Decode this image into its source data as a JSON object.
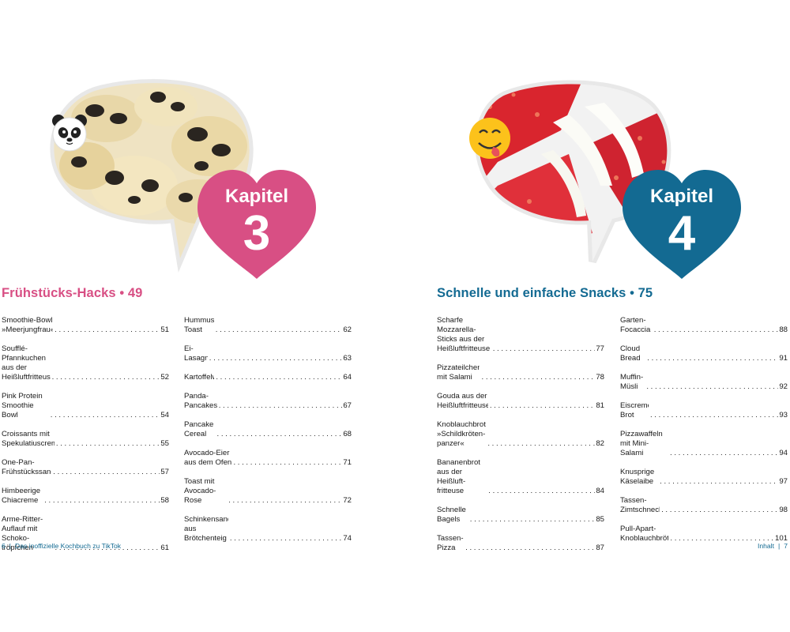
{
  "colors": {
    "pink": "#d84f84",
    "blue": "#136a92"
  },
  "left": {
    "chapter": {
      "word": "Kapitel",
      "number": "3",
      "title": "Frühstücks-Hacks  •  49"
    },
    "col1": [
      {
        "text": "Smoothie-Bowl »Meerjungfrau«",
        "page": "51"
      },
      {
        "text": "Soufflé-Pfannkuchen aus der\nHeißluftfritteuse",
        "page": "52"
      },
      {
        "text": "Pink Protein Smoothie Bowl",
        "page": "54"
      },
      {
        "text": "Croissants mit Spekulatiuscreme",
        "page": "55"
      },
      {
        "text": "One-Pan-Frühstückssandwich",
        "page": "57"
      },
      {
        "text": "Himbeerige Chiacreme",
        "page": "58"
      },
      {
        "text": "Arme-Ritter-Auflauf mit Schoko-\ntröpfchen",
        "page": "61"
      }
    ],
    "col2": [
      {
        "text": "Hummus-Toast",
        "page": "62"
      },
      {
        "text": "Ei-Lasagne",
        "page": "63"
      },
      {
        "text": "Kartoffelwaffeln",
        "page": "64"
      },
      {
        "text": "Panda-Pancakes",
        "page": "67"
      },
      {
        "text": "Pancake Cereal",
        "page": "68"
      },
      {
        "text": "Avocado-Eier aus dem Ofen",
        "page": "71"
      },
      {
        "text": "Toast mit Avocado-Rose",
        "page": "72"
      },
      {
        "text": "Schinkensandwiches aus\nBrötchenteig",
        "page": "74"
      }
    ],
    "footer": {
      "page": "6",
      "sep": "|",
      "text": "Das inoffizielle Kochbuch zu TikTok"
    }
  },
  "right": {
    "chapter": {
      "word": "Kapitel",
      "number": "4",
      "title": "Schnelle und einfache Snacks  •  75"
    },
    "col1": [
      {
        "text": "Scharfe Mozzarella-Sticks aus der\nHeißluftfritteuse",
        "page": "77"
      },
      {
        "text": "Pizzateilchen mit Salami",
        "page": "78"
      },
      {
        "text": "Gouda aus der Heißluftfritteuse",
        "page": "81"
      },
      {
        "text": "Knoblauchbrot »Schildkröten-\npanzer«",
        "page": "82"
      },
      {
        "text": "Bananenbrot aus der Heißluft-\nfritteuse",
        "page": "84"
      },
      {
        "text": "Schnelle Bagels",
        "page": "85"
      },
      {
        "text": "Tassen-Pizza",
        "page": "87"
      }
    ],
    "col2": [
      {
        "text": "Garten-Focaccia",
        "page": "88"
      },
      {
        "text": "Cloud Bread",
        "page": "91"
      },
      {
        "text": "Muffin-Müsli",
        "page": "92"
      },
      {
        "text": "Eiscreme-Brot",
        "page": "93"
      },
      {
        "text": "Pizzawaffeln mit Mini-Salami",
        "page": "94"
      },
      {
        "text": "Knusprige Käselaibe",
        "page": "97"
      },
      {
        "text": "Tassen-Zimtschnecke",
        "page": "98"
      },
      {
        "text": "Pull-Apart-Knoblauchbrötchen",
        "page": "101"
      }
    ],
    "footer": {
      "page": "7",
      "sep": "|",
      "text": "Inhalt"
    }
  }
}
